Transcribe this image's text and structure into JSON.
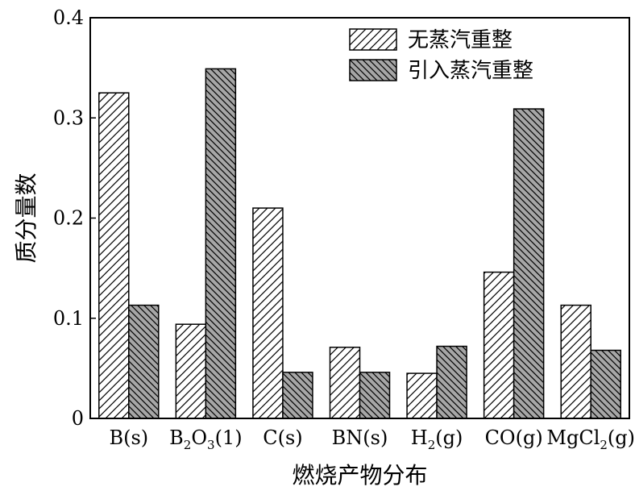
{
  "chart_data": {
    "type": "bar",
    "categories": [
      {
        "label": "B(s)",
        "parts": [
          {
            "t": "B(s)"
          }
        ]
      },
      {
        "label": "B2O3(1)",
        "parts": [
          {
            "t": "B"
          },
          {
            "t": "2",
            "sub": true
          },
          {
            "t": "O"
          },
          {
            "t": "3",
            "sub": true
          },
          {
            "t": "(1)"
          }
        ]
      },
      {
        "label": "C(s)",
        "parts": [
          {
            "t": "C(s)"
          }
        ]
      },
      {
        "label": "BN(s)",
        "parts": [
          {
            "t": "BN(s)"
          }
        ]
      },
      {
        "label": "H2(g)",
        "parts": [
          {
            "t": "H"
          },
          {
            "t": "2",
            "sub": true
          },
          {
            "t": "(g)"
          }
        ]
      },
      {
        "label": "CO(g)",
        "parts": [
          {
            "t": "CO(g)"
          }
        ]
      },
      {
        "label": "MgCl2(g)",
        "parts": [
          {
            "t": "MgCl"
          },
          {
            "t": "2",
            "sub": true
          },
          {
            "t": "(g)"
          }
        ]
      }
    ],
    "series": [
      {
        "name": "无蒸汽重整",
        "values": [
          0.325,
          0.094,
          0.21,
          0.071,
          0.045,
          0.146,
          0.113
        ],
        "fill": "#ffffff",
        "hatch": "forward"
      },
      {
        "name": "引入蒸汽重整",
        "values": [
          0.113,
          0.349,
          0.046,
          0.046,
          0.072,
          0.309,
          0.068
        ],
        "fill": "#a6a6a6",
        "hatch": "backward"
      }
    ],
    "ylabel": "质分量数",
    "xlabel": "燃烧产物分布",
    "ylim": [
      0,
      0.4
    ],
    "yticks": [
      "0",
      "0.1",
      "0.2",
      "0.3",
      "0.4"
    ],
    "legend_position": "top-right",
    "grid": false
  }
}
